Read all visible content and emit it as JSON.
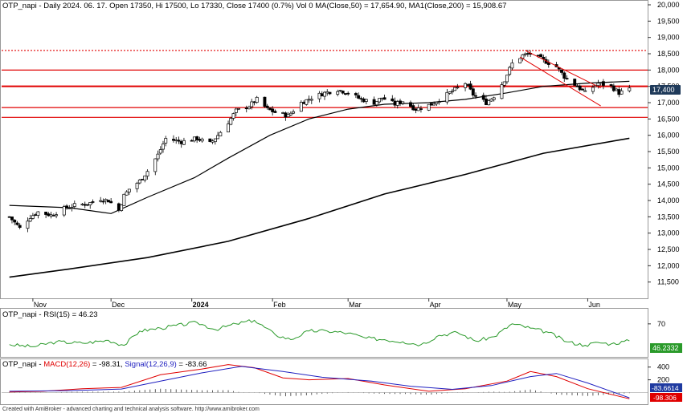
{
  "header": {
    "main": "OTP_napi - Daily 2024. 06. 17. Open 17350, Hi 17500, Lo 17330, Close 17400 (0.7%) Vol 0 MA(Close,50) = 17,654.90, MA1(Close,200) = 15,908.67",
    "rsi": "OTP_napi - RSI(15) = 46.23",
    "macd_prefix": "OTP_napi - ",
    "macd_label": "MACD(12,26)",
    "macd_value": " = -98.31, ",
    "signal_label": "Signal(12,26,9)",
    "signal_value": " = -83.66"
  },
  "footer": "Created with AmiBroker - advanced charting and technical analysis software. http://www.amibroker.com",
  "colors": {
    "candle_up": "#ffffff",
    "candle_down": "#000000",
    "ma": "#000000",
    "hline": "#e00000",
    "channel": "#e00000",
    "rsi": "#2a9a2a",
    "macd": "#e00000",
    "signal": "#2020c0",
    "hist": "#333333",
    "last_price_bg": "#1f3a5a",
    "rsi_badge_bg": "#2a9a2a",
    "macd_badge_bg": "#1f3aa0",
    "signal_badge_bg": "#e00000"
  },
  "chart_data": [
    {
      "type": "candlestick",
      "x_labels": [
        "Nov",
        "Dec",
        "2024",
        "Feb",
        "Mar",
        "Apr",
        "May",
        "Jun"
      ],
      "y_ticks": [
        "11,500",
        "12,000",
        "12,500",
        "13,000",
        "13,500",
        "14,000",
        "14,500",
        "15,000",
        "15,500",
        "16,000",
        "16,500",
        "17,000",
        "17,500",
        "18,000",
        "18,500",
        "19,000",
        "19,500",
        "20,000"
      ],
      "ylim": [
        11050,
        20000
      ],
      "last_price_label": "17,400",
      "last": {
        "date": "2024-06-17",
        "open": 17350,
        "high": 17500,
        "low": 17330,
        "close": 17400,
        "change_pct": 0.7,
        "volume": 0
      },
      "close_path": [
        [
          "2023-10-23",
          13500
        ],
        [
          "2023-10-27",
          13150
        ],
        [
          "2023-10-31",
          13500
        ],
        [
          "2023-11-03",
          13650
        ],
        [
          "2023-11-08",
          13550
        ],
        [
          "2023-11-13",
          13750
        ],
        [
          "2023-11-17",
          13850
        ],
        [
          "2023-11-22",
          13900
        ],
        [
          "2023-11-27",
          14050
        ],
        [
          "2023-11-30",
          14000
        ],
        [
          "2023-12-04",
          13700
        ],
        [
          "2023-12-06",
          14150
        ],
        [
          "2023-12-08",
          14350
        ],
        [
          "2023-12-12",
          14600
        ],
        [
          "2023-12-15",
          14900
        ],
        [
          "2023-12-19",
          15400
        ],
        [
          "2023-12-22",
          15900
        ],
        [
          "2023-12-28",
          15800
        ],
        [
          "2024-01-03",
          15900
        ],
        [
          "2024-01-08",
          15750
        ],
        [
          "2024-01-11",
          16000
        ],
        [
          "2024-01-15",
          16400
        ],
        [
          "2024-01-18",
          16750
        ],
        [
          "2024-01-23",
          16900
        ],
        [
          "2024-01-26",
          17100
        ],
        [
          "2024-01-30",
          16800
        ],
        [
          "2024-02-02",
          16700
        ],
        [
          "2024-02-07",
          16600
        ],
        [
          "2024-02-12",
          17000
        ],
        [
          "2024-02-16",
          17150
        ],
        [
          "2024-02-21",
          17300
        ],
        [
          "2024-02-26",
          17400
        ],
        [
          "2024-03-01",
          17300
        ],
        [
          "2024-03-06",
          17100
        ],
        [
          "2024-03-11",
          17000
        ],
        [
          "2024-03-14",
          17150
        ],
        [
          "2024-03-19",
          16950
        ],
        [
          "2024-03-22",
          17050
        ],
        [
          "2024-03-27",
          16800
        ],
        [
          "2024-04-02",
          16950
        ],
        [
          "2024-04-05",
          17100
        ],
        [
          "2024-04-10",
          17350
        ],
        [
          "2024-04-15",
          17600
        ],
        [
          "2024-04-18",
          17250
        ],
        [
          "2024-04-23",
          17000
        ],
        [
          "2024-04-26",
          17200
        ],
        [
          "2024-04-30",
          17700
        ],
        [
          "2024-05-03",
          18200
        ],
        [
          "2024-05-07",
          18450
        ],
        [
          "2024-05-10",
          18500
        ],
        [
          "2024-05-15",
          18300
        ],
        [
          "2024-05-20",
          18100
        ],
        [
          "2024-05-23",
          17800
        ],
        [
          "2024-05-28",
          17500
        ],
        [
          "2024-05-31",
          17300
        ],
        [
          "2024-06-05",
          17600
        ],
        [
          "2024-06-10",
          17500
        ],
        [
          "2024-06-13",
          17300
        ],
        [
          "2024-06-17",
          17400
        ]
      ],
      "ma50": [
        [
          "2023-10-23",
          13850
        ],
        [
          "2023-11-15",
          13780
        ],
        [
          "2023-12-01",
          13600
        ],
        [
          "2023-12-15",
          14100
        ],
        [
          "2024-01-02",
          14700
        ],
        [
          "2024-01-15",
          15300
        ],
        [
          "2024-01-31",
          16000
        ],
        [
          "2024-02-15",
          16500
        ],
        [
          "2024-03-01",
          16800
        ],
        [
          "2024-03-15",
          16950
        ],
        [
          "2024-04-01",
          17000
        ],
        [
          "2024-04-15",
          17100
        ],
        [
          "2024-05-01",
          17300
        ],
        [
          "2024-05-15",
          17500
        ],
        [
          "2024-06-01",
          17600
        ],
        [
          "2024-06-17",
          17655
        ]
      ],
      "ma200": [
        [
          "2023-10-23",
          11650
        ],
        [
          "2023-11-15",
          11900
        ],
        [
          "2023-12-15",
          12250
        ],
        [
          "2024-01-15",
          12750
        ],
        [
          "2024-02-15",
          13450
        ],
        [
          "2024-03-15",
          14200
        ],
        [
          "2024-04-15",
          14800
        ],
        [
          "2024-05-15",
          15450
        ],
        [
          "2024-06-17",
          15909
        ]
      ],
      "horizontal_lines": [
        18600,
        18000,
        17500,
        16850,
        16550
      ],
      "channel": {
        "upper": [
          [
            "2024-05-08",
            18600
          ],
          [
            "2024-06-06",
            17450
          ]
        ],
        "lower": [
          [
            "2024-05-06",
            18400
          ],
          [
            "2024-06-06",
            16900
          ]
        ]
      }
    },
    {
      "type": "line",
      "name": "RSI(15)",
      "y_ticks": [
        "70"
      ],
      "ylim": [
        25,
        90
      ],
      "last_value_label": "46.2332",
      "points": [
        [
          "2023-10-23",
          41
        ],
        [
          "2023-11-01",
          38
        ],
        [
          "2023-11-10",
          45
        ],
        [
          "2023-11-20",
          43
        ],
        [
          "2023-11-30",
          47
        ],
        [
          "2023-12-06",
          40
        ],
        [
          "2023-12-12",
          60
        ],
        [
          "2023-12-20",
          64
        ],
        [
          "2024-01-03",
          72
        ],
        [
          "2024-01-10",
          62
        ],
        [
          "2024-01-18",
          70
        ],
        [
          "2024-01-25",
          75
        ],
        [
          "2024-02-02",
          55
        ],
        [
          "2024-02-08",
          48
        ],
        [
          "2024-02-15",
          60
        ],
        [
          "2024-02-22",
          60
        ],
        [
          "2024-03-01",
          57
        ],
        [
          "2024-03-08",
          50
        ],
        [
          "2024-03-15",
          48
        ],
        [
          "2024-03-22",
          45
        ],
        [
          "2024-03-29",
          41
        ],
        [
          "2024-04-05",
          54
        ],
        [
          "2024-04-12",
          58
        ],
        [
          "2024-04-19",
          46
        ],
        [
          "2024-04-26",
          52
        ],
        [
          "2024-05-03",
          70
        ],
        [
          "2024-05-10",
          64
        ],
        [
          "2024-05-17",
          58
        ],
        [
          "2024-05-24",
          45
        ],
        [
          "2024-05-31",
          40
        ],
        [
          "2024-06-05",
          44
        ],
        [
          "2024-06-10",
          42
        ],
        [
          "2024-06-17",
          46.23
        ]
      ]
    },
    {
      "type": "line+bar",
      "y_ticks": [
        "400",
        "200"
      ],
      "ylim": [
        -170,
        510
      ],
      "series": [
        {
          "name": "MACD(12,26)",
          "last_label": "-98.306",
          "points": [
            [
              "2023-10-23",
              10
            ],
            [
              "2023-11-05",
              20
            ],
            [
              "2023-11-20",
              60
            ],
            [
              "2023-12-05",
              80
            ],
            [
              "2023-12-20",
              280
            ],
            [
              "2024-01-05",
              370
            ],
            [
              "2024-01-15",
              440
            ],
            [
              "2024-01-25",
              390
            ],
            [
              "2024-02-05",
              230
            ],
            [
              "2024-02-15",
              200
            ],
            [
              "2024-03-01",
              220
            ],
            [
              "2024-03-15",
              120
            ],
            [
              "2024-04-01",
              20
            ],
            [
              "2024-04-15",
              60
            ],
            [
              "2024-05-01",
              180
            ],
            [
              "2024-05-10",
              330
            ],
            [
              "2024-05-20",
              250
            ],
            [
              "2024-06-01",
              60
            ],
            [
              "2024-06-17",
              -98.31
            ]
          ]
        },
        {
          "name": "Signal(12,26,9)",
          "last_label": "-83.6614",
          "points": [
            [
              "2023-10-23",
              20
            ],
            [
              "2023-11-15",
              30
            ],
            [
              "2023-12-05",
              55
            ],
            [
              "2023-12-20",
              180
            ],
            [
              "2024-01-05",
              310
            ],
            [
              "2024-01-20",
              410
            ],
            [
              "2024-02-05",
              330
            ],
            [
              "2024-02-20",
              240
            ],
            [
              "2024-03-10",
              180
            ],
            [
              "2024-03-25",
              100
            ],
            [
              "2024-04-10",
              50
            ],
            [
              "2024-04-25",
              110
            ],
            [
              "2024-05-10",
              250
            ],
            [
              "2024-05-20",
              300
            ],
            [
              "2024-06-01",
              150
            ],
            [
              "2024-06-17",
              -83.66
            ]
          ]
        }
      ]
    }
  ]
}
